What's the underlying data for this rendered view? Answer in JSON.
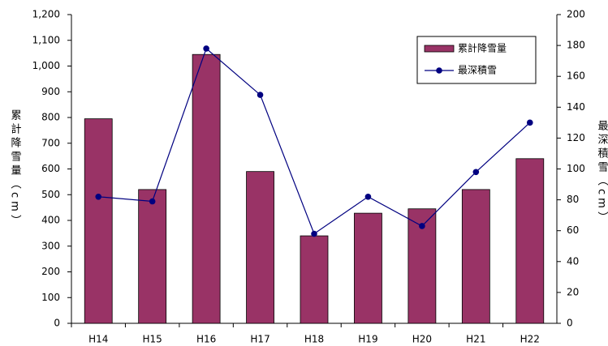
{
  "chart_data": {
    "type": "bar_line",
    "categories": [
      "H14",
      "H15",
      "H16",
      "H17",
      "H18",
      "H19",
      "H20",
      "H21",
      "H22"
    ],
    "series": [
      {
        "name": "累計降雪量",
        "color": "#993366",
        "type": "bar",
        "values": [
          795,
          520,
          1045,
          590,
          340,
          428,
          445,
          520,
          640
        ]
      },
      {
        "name": "最深積雪",
        "color": "#000080",
        "type": "line",
        "axis": "y2",
        "values": [
          82,
          79,
          178,
          148,
          58,
          82,
          63,
          98,
          130
        ]
      }
    ],
    "ylabel": "累計降雪量（cm）",
    "y2label": "最深積雪（cm）",
    "ylim": [
      0,
      1200
    ],
    "yticks": [
      0,
      100,
      200,
      300,
      400,
      500,
      600,
      700,
      800,
      900,
      {
        "value": 1000,
        "label": "1,000"
      },
      {
        "value": 1100,
        "label": "1,100"
      },
      {
        "value": 1200,
        "label": "1,200"
      }
    ],
    "y2lim": [
      0,
      200
    ],
    "y2ticks": [
      0,
      20,
      40,
      60,
      80,
      100,
      120,
      140,
      160,
      180,
      200
    ],
    "legend": "upper right",
    "grid": false
  }
}
